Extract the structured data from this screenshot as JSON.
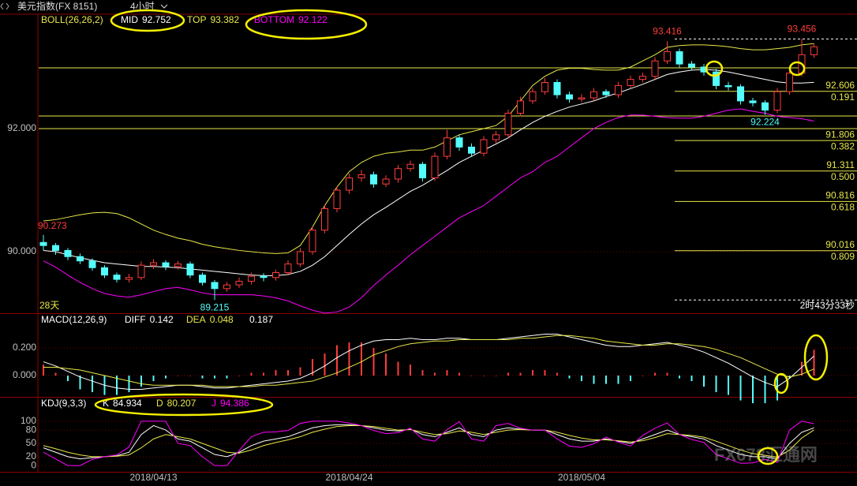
{
  "header": {
    "title": "美元指数(FX 8151)",
    "period": "4小时"
  },
  "watermark": "FX678汇通网",
  "chart_data": [
    {
      "type": "candlestick",
      "label": "BOLL(26,26,2)",
      "up_color": "#ff3c3c",
      "down_color": "#54fcfc",
      "candles": [
        [
          90.15,
          90.273,
          90.02,
          90.1
        ],
        [
          90.1,
          90.14,
          89.95,
          90.02
        ],
        [
          90.02,
          90.06,
          89.86,
          89.92
        ],
        [
          89.92,
          89.97,
          89.8,
          89.85
        ],
        [
          89.85,
          89.89,
          89.69,
          89.74
        ],
        [
          89.74,
          89.78,
          89.57,
          89.62
        ],
        [
          89.62,
          89.66,
          89.5,
          89.55
        ],
        [
          89.55,
          89.64,
          89.5,
          89.58
        ],
        [
          89.58,
          89.84,
          89.54,
          89.78
        ],
        [
          89.78,
          89.88,
          89.72,
          89.82
        ],
        [
          89.82,
          89.86,
          89.7,
          89.76
        ],
        [
          89.76,
          89.85,
          89.71,
          89.8
        ],
        [
          89.8,
          89.84,
          89.57,
          89.62
        ],
        [
          89.62,
          89.66,
          89.45,
          89.5
        ],
        [
          89.5,
          89.54,
          89.215,
          89.4
        ],
        [
          89.4,
          89.51,
          89.35,
          89.46
        ],
        [
          89.46,
          89.58,
          89.41,
          89.52
        ],
        [
          89.52,
          89.66,
          89.47,
          89.6
        ],
        [
          89.6,
          89.65,
          89.52,
          89.58
        ],
        [
          89.58,
          89.71,
          89.53,
          89.66
        ],
        [
          89.66,
          89.86,
          89.61,
          89.8
        ],
        [
          89.8,
          90.06,
          89.75,
          90.0
        ],
        [
          90.0,
          90.41,
          89.95,
          90.35
        ],
        [
          90.35,
          90.76,
          90.3,
          90.7
        ],
        [
          90.7,
          91.06,
          90.64,
          91.0
        ],
        [
          91.0,
          91.27,
          90.94,
          91.2
        ],
        [
          91.2,
          91.33,
          91.14,
          91.25
        ],
        [
          91.25,
          91.3,
          91.04,
          91.1
        ],
        [
          91.1,
          91.24,
          91.05,
          91.18
        ],
        [
          91.18,
          91.41,
          91.12,
          91.35
        ],
        [
          91.35,
          91.48,
          91.3,
          91.42
        ],
        [
          91.42,
          91.46,
          91.14,
          91.2
        ],
        [
          91.2,
          91.61,
          91.15,
          91.55
        ],
        [
          91.55,
          91.98,
          91.5,
          91.85
        ],
        [
          91.85,
          91.9,
          91.64,
          91.7
        ],
        [
          91.7,
          91.76,
          91.54,
          91.6
        ],
        [
          91.6,
          91.88,
          91.55,
          91.82
        ],
        [
          91.82,
          91.96,
          91.77,
          91.9
        ],
        [
          91.9,
          92.31,
          91.85,
          92.25
        ],
        [
          92.25,
          92.52,
          92.2,
          92.45
        ],
        [
          92.45,
          92.66,
          92.4,
          92.6
        ],
        [
          92.6,
          92.82,
          92.55,
          92.75
        ],
        [
          92.75,
          92.8,
          92.49,
          92.55
        ],
        [
          92.55,
          92.6,
          92.42,
          92.48
        ],
        [
          92.48,
          92.56,
          92.43,
          92.5
        ],
        [
          92.5,
          92.66,
          92.45,
          92.6
        ],
        [
          92.6,
          92.64,
          92.5,
          92.55
        ],
        [
          92.55,
          92.76,
          92.5,
          92.7
        ],
        [
          92.7,
          92.86,
          92.65,
          92.8
        ],
        [
          92.8,
          92.91,
          92.75,
          92.85
        ],
        [
          92.85,
          93.16,
          92.8,
          93.1
        ],
        [
          93.1,
          93.416,
          93.05,
          93.25
        ],
        [
          93.25,
          93.3,
          92.99,
          93.05
        ],
        [
          93.05,
          93.1,
          92.95,
          93.0
        ],
        [
          93.0,
          93.05,
          92.86,
          92.92
        ],
        [
          92.92,
          92.97,
          92.64,
          92.7
        ],
        [
          92.7,
          92.76,
          92.62,
          92.68
        ],
        [
          92.68,
          92.72,
          92.39,
          92.45
        ],
        [
          92.45,
          92.5,
          92.36,
          92.42
        ],
        [
          92.42,
          92.46,
          92.224,
          92.3
        ],
        [
          92.3,
          92.66,
          92.25,
          92.6
        ],
        [
          92.6,
          92.96,
          92.55,
          92.9
        ],
        [
          92.9,
          93.456,
          92.85,
          93.2
        ],
        [
          93.2,
          93.38,
          93.15,
          93.33
        ]
      ],
      "series": [
        {
          "name": "MID",
          "color": "#ffffff",
          "values": [
            90.02,
            90.0,
            89.95,
            89.9,
            89.86,
            89.82,
            89.8,
            89.78,
            89.76,
            89.76,
            89.75,
            89.74,
            89.72,
            89.7,
            89.68,
            89.66,
            89.64,
            89.62,
            89.61,
            89.61,
            89.63,
            89.68,
            89.78,
            89.92,
            90.1,
            90.28,
            90.45,
            90.6,
            90.72,
            90.85,
            90.98,
            91.08,
            91.2,
            91.32,
            91.45,
            91.55,
            91.65,
            91.75,
            91.85,
            91.98,
            92.1,
            92.2,
            92.28,
            92.35,
            92.4,
            92.45,
            92.52,
            92.58,
            92.65,
            92.72,
            92.8,
            92.88,
            92.92,
            92.95,
            92.96,
            92.95,
            92.92,
            92.88,
            92.84,
            92.8,
            92.76,
            92.74,
            92.74,
            92.752
          ]
        },
        {
          "name": "TOP",
          "color": "#e8e84a",
          "values": [
            90.5,
            90.52,
            90.56,
            90.6,
            90.63,
            90.64,
            90.62,
            90.55,
            90.45,
            90.35,
            90.28,
            90.22,
            90.18,
            90.12,
            90.08,
            90.05,
            90.02,
            90.0,
            89.98,
            89.97,
            89.98,
            90.1,
            90.4,
            90.75,
            91.05,
            91.3,
            91.45,
            91.55,
            91.6,
            91.62,
            91.65,
            91.65,
            91.7,
            91.8,
            91.9,
            91.95,
            92.0,
            92.05,
            92.2,
            92.45,
            92.7,
            92.85,
            92.95,
            92.98,
            92.98,
            92.96,
            92.95,
            92.95,
            93.0,
            93.1,
            93.2,
            93.32,
            93.35,
            93.36,
            93.36,
            93.35,
            93.33,
            93.3,
            93.28,
            93.28,
            93.3,
            93.32,
            93.36,
            93.382
          ]
        },
        {
          "name": "BOTTOM",
          "color": "#ff00ff",
          "values": [
            89.85,
            89.75,
            89.62,
            89.5,
            89.4,
            89.32,
            89.28,
            89.26,
            89.3,
            89.35,
            89.4,
            89.42,
            89.38,
            89.33,
            89.3,
            89.3,
            89.3,
            89.3,
            89.28,
            89.25,
            89.2,
            89.12,
            89.05,
            89.0,
            89.02,
            89.1,
            89.25,
            89.45,
            89.62,
            89.78,
            89.95,
            90.1,
            90.25,
            90.4,
            90.55,
            90.65,
            90.75,
            90.9,
            91.05,
            91.2,
            91.3,
            91.45,
            91.55,
            91.7,
            91.85,
            92.0,
            92.1,
            92.18,
            92.22,
            92.22,
            92.2,
            92.18,
            92.17,
            92.17,
            92.2,
            92.25,
            92.3,
            92.32,
            92.28,
            92.25,
            92.2,
            92.18,
            92.16,
            92.122
          ]
        }
      ],
      "ylim": [
        89.0,
        93.859
      ],
      "yticks": [
        {
          "value": 92,
          "label": "92.000"
        },
        {
          "value": 90,
          "label": "90.000"
        }
      ],
      "hlines": [
        92.987,
        92.205,
        92.0
      ],
      "hline_color": "#e8e84a",
      "fib": {
        "top": 93.456,
        "bottom": 89.215,
        "color": "#e8e84a",
        "levels": [
          {
            "price": 92.606,
            "ratio": "0.191"
          },
          {
            "price": 91.806,
            "ratio": "0.382"
          },
          {
            "price": 91.311,
            "ratio": "0.500"
          },
          {
            "price": 90.816,
            "ratio": "0.618"
          },
          {
            "price": 90.016,
            "ratio": "0.809"
          }
        ]
      },
      "period_label": "28天",
      "countdown": "2时43分33秒"
    },
    {
      "type": "macd",
      "label": "MACD(12,26,9)",
      "series": [
        {
          "name": "DIFF",
          "color": "#ffffff",
          "values": [
            0.1,
            0.07,
            0.03,
            -0.01,
            -0.04,
            -0.07,
            -0.09,
            -0.1,
            -0.1,
            -0.09,
            -0.08,
            -0.07,
            -0.07,
            -0.08,
            -0.09,
            -0.09,
            -0.08,
            -0.07,
            -0.06,
            -0.05,
            -0.04,
            -0.02,
            0.02,
            0.07,
            0.13,
            0.18,
            0.22,
            0.25,
            0.26,
            0.26,
            0.27,
            0.26,
            0.26,
            0.27,
            0.27,
            0.26,
            0.26,
            0.26,
            0.27,
            0.28,
            0.29,
            0.3,
            0.3,
            0.28,
            0.26,
            0.24,
            0.22,
            0.21,
            0.21,
            0.22,
            0.23,
            0.24,
            0.22,
            0.2,
            0.17,
            0.13,
            0.09,
            0.04,
            -0.01,
            -0.05,
            -0.08,
            -0.02,
            0.06,
            0.142
          ]
        },
        {
          "name": "DEA",
          "color": "#e8e84a",
          "values": [
            0.06,
            0.06,
            0.05,
            0.04,
            0.02,
            0.0,
            -0.02,
            -0.04,
            -0.06,
            -0.07,
            -0.07,
            -0.07,
            -0.07,
            -0.07,
            -0.08,
            -0.08,
            -0.08,
            -0.08,
            -0.07,
            -0.07,
            -0.06,
            -0.05,
            -0.04,
            -0.01,
            0.02,
            0.06,
            0.1,
            0.15,
            0.18,
            0.21,
            0.23,
            0.24,
            0.25,
            0.25,
            0.26,
            0.26,
            0.26,
            0.26,
            0.26,
            0.27,
            0.27,
            0.28,
            0.29,
            0.29,
            0.28,
            0.27,
            0.25,
            0.24,
            0.23,
            0.22,
            0.22,
            0.23,
            0.23,
            0.22,
            0.21,
            0.19,
            0.16,
            0.13,
            0.09,
            0.05,
            0.01,
            -0.01,
            0.01,
            0.048
          ]
        }
      ],
      "histogram": {
        "values": [
          0.08,
          0.02,
          -0.04,
          -0.1,
          -0.12,
          -0.14,
          -0.14,
          -0.12,
          -0.08,
          -0.04,
          -0.02,
          0.0,
          0.0,
          -0.02,
          -0.02,
          -0.02,
          0.0,
          0.02,
          0.02,
          0.04,
          0.04,
          0.06,
          0.12,
          0.16,
          0.22,
          0.24,
          0.24,
          0.2,
          0.16,
          0.1,
          0.08,
          0.04,
          0.02,
          0.04,
          0.02,
          0.0,
          0.0,
          0.0,
          0.02,
          0.02,
          0.04,
          0.04,
          0.02,
          -0.02,
          -0.04,
          -0.06,
          -0.06,
          -0.06,
          -0.04,
          0.0,
          0.02,
          0.02,
          -0.02,
          -0.04,
          -0.08,
          -0.12,
          -0.14,
          -0.18,
          -0.2,
          -0.2,
          -0.18,
          -0.02,
          0.1,
          0.187
        ],
        "up_color": "#ff3c3c",
        "down_color": "#54fcfc"
      },
      "ylim": [
        -0.154,
        0.446
      ],
      "yticks": [
        {
          "value": 0.2,
          "label": "0.200"
        },
        {
          "value": 0,
          "label": "0.000"
        }
      ]
    },
    {
      "type": "line",
      "label": "KDJ(9,3,3)",
      "series": [
        {
          "name": "K",
          "color": "#ffffff",
          "values": [
            40,
            30,
            20,
            15,
            18,
            20,
            22,
            30,
            70,
            90,
            80,
            60,
            55,
            40,
            25,
            20,
            30,
            45,
            55,
            60,
            65,
            75,
            85,
            90,
            92,
            92,
            90,
            85,
            80,
            78,
            82,
            70,
            65,
            75,
            85,
            70,
            65,
            80,
            85,
            82,
            80,
            80,
            70,
            60,
            55,
            55,
            60,
            55,
            50,
            60,
            70,
            80,
            70,
            65,
            60,
            45,
            35,
            25,
            20,
            20,
            15,
            50,
            75,
            84.934
          ]
        },
        {
          "name": "D",
          "color": "#e8e84a",
          "values": [
            45,
            38,
            30,
            24,
            20,
            20,
            21,
            24,
            40,
            60,
            70,
            65,
            60,
            50,
            40,
            30,
            28,
            35,
            45,
            52,
            58,
            65,
            75,
            82,
            88,
            90,
            90,
            88,
            84,
            80,
            81,
            75,
            70,
            72,
            78,
            75,
            70,
            75,
            80,
            81,
            80,
            80,
            75,
            68,
            62,
            58,
            58,
            56,
            53,
            56,
            63,
            72,
            70,
            68,
            64,
            55,
            45,
            35,
            27,
            23,
            19,
            35,
            62,
            80.207
          ]
        },
        {
          "name": "J",
          "color": "#ff00ff",
          "values": [
            30,
            15,
            0,
            0,
            14,
            20,
            24,
            42,
            100,
            100,
            100,
            50,
            45,
            20,
            0,
            0,
            34,
            65,
            75,
            76,
            79,
            95,
            100,
            100,
            100,
            96,
            90,
            79,
            72,
            74,
            84,
            60,
            55,
            81,
            99,
            60,
            55,
            90,
            95,
            84,
            80,
            80,
            60,
            44,
            41,
            49,
            64,
            53,
            44,
            68,
            84,
            96,
            70,
            59,
            52,
            25,
            15,
            5,
            6,
            14,
            7,
            80,
            100,
            94.386
          ]
        }
      ],
      "ylim": [
        -14,
        153
      ],
      "yticks": [
        100,
        80,
        50,
        20,
        0
      ],
      "categories": [
        null,
        null,
        null,
        null,
        null,
        null,
        null,
        null,
        null,
        "2018/04/13",
        null,
        null,
        null,
        null,
        null,
        null,
        null,
        null,
        null,
        null,
        null,
        null,
        null,
        null,
        null,
        "2018/04/24",
        null,
        null,
        null,
        null,
        null,
        null,
        null,
        null,
        null,
        null,
        null,
        null,
        null,
        null,
        null,
        null,
        null,
        null,
        "2018/05/04",
        null,
        null,
        null,
        null,
        null,
        null,
        null,
        null,
        null,
        null,
        null,
        null,
        null,
        null,
        null,
        null,
        null,
        null,
        null
      ]
    }
  ]
}
